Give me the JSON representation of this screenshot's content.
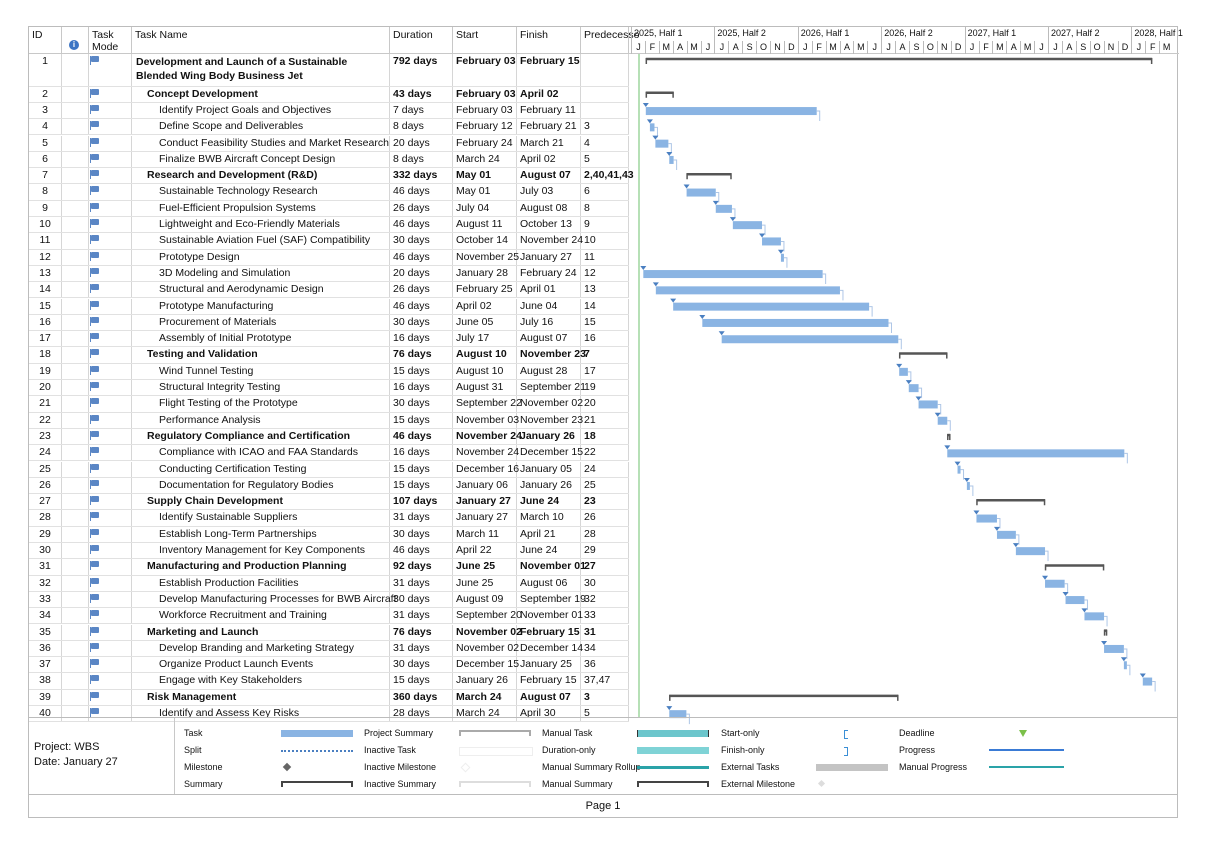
{
  "columns": {
    "id": "ID",
    "task_mode": "Task Mode",
    "task_name": "Task Name",
    "duration": "Duration",
    "start": "Start",
    "finish": "Finish",
    "predecessors": "Predecesso"
  },
  "timescale": {
    "major": [
      "2025, Half 1",
      "2025, Half 2",
      "2026, Half 1",
      "2026, Half 2",
      "2027, Half 1",
      "2027, Half 2",
      "2028, Half 1"
    ],
    "minor": [
      "J",
      "F",
      "M",
      "A",
      "M",
      "J",
      "J",
      "A",
      "S",
      "O",
      "N",
      "D",
      "J",
      "F",
      "M",
      "A",
      "M",
      "J",
      "J",
      "A",
      "S",
      "O",
      "N",
      "D",
      "J",
      "F",
      "M",
      "A",
      "M",
      "J",
      "J",
      "A",
      "S",
      "O",
      "N",
      "D",
      "J",
      "F",
      "M"
    ]
  },
  "tasks": [
    {
      "id": "1",
      "name": "Development and Launch of a Sustainable Blended Wing Body Business Jet",
      "duration": "792 days",
      "start": "February 03",
      "finish": "February 15",
      "pred": "",
      "summary": true,
      "level": 0
    },
    {
      "id": "2",
      "name": "Concept Development",
      "duration": "43 days",
      "start": "February 03",
      "finish": "April 02",
      "pred": "",
      "summary": true,
      "level": 1
    },
    {
      "id": "3",
      "name": "Identify Project Goals and Objectives",
      "duration": "7 days",
      "start": "February 03",
      "finish": "February 11",
      "pred": "",
      "summary": false,
      "level": 2
    },
    {
      "id": "4",
      "name": "Define Scope and Deliverables",
      "duration": "8 days",
      "start": "February 12",
      "finish": "February 21",
      "pred": "3",
      "summary": false,
      "level": 2
    },
    {
      "id": "5",
      "name": "Conduct Feasibility Studies and Market Research",
      "duration": "20 days",
      "start": "February 24",
      "finish": "March 21",
      "pred": "4",
      "summary": false,
      "level": 2
    },
    {
      "id": "6",
      "name": "Finalize BWB Aircraft Concept Design",
      "duration": "8 days",
      "start": "March 24",
      "finish": "April 02",
      "pred": "5",
      "summary": false,
      "level": 2
    },
    {
      "id": "7",
      "name": "Research and Development (R&D)",
      "duration": "332 days",
      "start": "May 01",
      "finish": "August 07",
      "pred": "2,40,41,43",
      "summary": true,
      "level": 1
    },
    {
      "id": "8",
      "name": "Sustainable Technology Research",
      "duration": "46 days",
      "start": "May 01",
      "finish": "July 03",
      "pred": "6",
      "summary": false,
      "level": 2
    },
    {
      "id": "9",
      "name": "Fuel-Efficient Propulsion Systems",
      "duration": "26 days",
      "start": "July 04",
      "finish": "August 08",
      "pred": "8",
      "summary": false,
      "level": 2
    },
    {
      "id": "10",
      "name": "Lightweight and Eco-Friendly Materials",
      "duration": "46 days",
      "start": "August 11",
      "finish": "October 13",
      "pred": "9",
      "summary": false,
      "level": 2
    },
    {
      "id": "11",
      "name": "Sustainable Aviation Fuel (SAF) Compatibility",
      "duration": "30 days",
      "start": "October 14",
      "finish": "November 24",
      "pred": "10",
      "summary": false,
      "level": 2
    },
    {
      "id": "12",
      "name": "Prototype Design",
      "duration": "46 days",
      "start": "November 25",
      "finish": "January 27",
      "pred": "11",
      "summary": false,
      "level": 2
    },
    {
      "id": "13",
      "name": "3D Modeling and Simulation",
      "duration": "20 days",
      "start": "January 28",
      "finish": "February 24",
      "pred": "12",
      "summary": false,
      "level": 2
    },
    {
      "id": "14",
      "name": "Structural and Aerodynamic Design",
      "duration": "26 days",
      "start": "February 25",
      "finish": "April 01",
      "pred": "13",
      "summary": false,
      "level": 2
    },
    {
      "id": "15",
      "name": "Prototype Manufacturing",
      "duration": "46 days",
      "start": "April 02",
      "finish": "June 04",
      "pred": "14",
      "summary": false,
      "level": 2
    },
    {
      "id": "16",
      "name": "Procurement of Materials",
      "duration": "30 days",
      "start": "June 05",
      "finish": "July 16",
      "pred": "15",
      "summary": false,
      "level": 2
    },
    {
      "id": "17",
      "name": "Assembly of Initial Prototype",
      "duration": "16 days",
      "start": "July 17",
      "finish": "August 07",
      "pred": "16",
      "summary": false,
      "level": 2
    },
    {
      "id": "18",
      "name": "Testing and Validation",
      "duration": "76 days",
      "start": "August 10",
      "finish": "November 23",
      "pred": "7",
      "summary": true,
      "level": 1
    },
    {
      "id": "19",
      "name": "Wind Tunnel Testing",
      "duration": "15 days",
      "start": "August 10",
      "finish": "August 28",
      "pred": "17",
      "summary": false,
      "level": 2
    },
    {
      "id": "20",
      "name": "Structural Integrity Testing",
      "duration": "16 days",
      "start": "August 31",
      "finish": "September 21",
      "pred": "19",
      "summary": false,
      "level": 2
    },
    {
      "id": "21",
      "name": "Flight Testing of the Prototype",
      "duration": "30 days",
      "start": "September 22",
      "finish": "November 02",
      "pred": "20",
      "summary": false,
      "level": 2
    },
    {
      "id": "22",
      "name": "Performance Analysis",
      "duration": "15 days",
      "start": "November 03",
      "finish": "November 23",
      "pred": "21",
      "summary": false,
      "level": 2
    },
    {
      "id": "23",
      "name": "Regulatory Compliance and Certification",
      "duration": "46 days",
      "start": "November 24",
      "finish": "January 26",
      "pred": "18",
      "summary": true,
      "level": 1
    },
    {
      "id": "24",
      "name": "Compliance with ICAO and FAA Standards",
      "duration": "16 days",
      "start": "November 24",
      "finish": "December 15",
      "pred": "22",
      "summary": false,
      "level": 2
    },
    {
      "id": "25",
      "name": "Conducting Certification Testing",
      "duration": "15 days",
      "start": "December 16",
      "finish": "January 05",
      "pred": "24",
      "summary": false,
      "level": 2
    },
    {
      "id": "26",
      "name": "Documentation for Regulatory Bodies",
      "duration": "15 days",
      "start": "January 06",
      "finish": "January 26",
      "pred": "25",
      "summary": false,
      "level": 2
    },
    {
      "id": "27",
      "name": "Supply Chain Development",
      "duration": "107 days",
      "start": "January 27",
      "finish": "June 24",
      "pred": "23",
      "summary": true,
      "level": 1
    },
    {
      "id": "28",
      "name": "Identify Sustainable Suppliers",
      "duration": "31 days",
      "start": "January 27",
      "finish": "March 10",
      "pred": "26",
      "summary": false,
      "level": 2
    },
    {
      "id": "29",
      "name": "Establish Long-Term Partnerships",
      "duration": "30 days",
      "start": "March 11",
      "finish": "April 21",
      "pred": "28",
      "summary": false,
      "level": 2
    },
    {
      "id": "30",
      "name": "Inventory Management for Key Components",
      "duration": "46 days",
      "start": "April 22",
      "finish": "June 24",
      "pred": "29",
      "summary": false,
      "level": 2
    },
    {
      "id": "31",
      "name": "Manufacturing and Production Planning",
      "duration": "92 days",
      "start": "June 25",
      "finish": "November 01",
      "pred": "27",
      "summary": true,
      "level": 1
    },
    {
      "id": "32",
      "name": "Establish Production Facilities",
      "duration": "31 days",
      "start": "June 25",
      "finish": "August 06",
      "pred": "30",
      "summary": false,
      "level": 2
    },
    {
      "id": "33",
      "name": "Develop Manufacturing Processes for BWB Aircraft",
      "duration": "30 days",
      "start": "August 09",
      "finish": "September 19",
      "pred": "32",
      "summary": false,
      "level": 2
    },
    {
      "id": "34",
      "name": "Workforce Recruitment and Training",
      "duration": "31 days",
      "start": "September 20",
      "finish": "November 01",
      "pred": "33",
      "summary": false,
      "level": 2
    },
    {
      "id": "35",
      "name": "Marketing and Launch",
      "duration": "76 days",
      "start": "November 02",
      "finish": "February 15",
      "pred": "31",
      "summary": true,
      "level": 1
    },
    {
      "id": "36",
      "name": "Develop Branding and Marketing Strategy",
      "duration": "31 days",
      "start": "November 02",
      "finish": "December 14",
      "pred": "34",
      "summary": false,
      "level": 2
    },
    {
      "id": "37",
      "name": "Organize Product Launch Events",
      "duration": "30 days",
      "start": "December 15",
      "finish": "January 25",
      "pred": "36",
      "summary": false,
      "level": 2
    },
    {
      "id": "38",
      "name": "Engage with Key Stakeholders",
      "duration": "15 days",
      "start": "January 26",
      "finish": "February 15",
      "pred": "37,47",
      "summary": false,
      "level": 2
    },
    {
      "id": "39",
      "name": "Risk Management",
      "duration": "360 days",
      "start": "March 24",
      "finish": "August 07",
      "pred": "3",
      "summary": true,
      "level": 1
    },
    {
      "id": "40",
      "name": "Identify and Assess Key Risks",
      "duration": "28 days",
      "start": "March 24",
      "finish": "April 30",
      "pred": "5",
      "summary": false,
      "level": 2
    }
  ],
  "legend": {
    "project": "Project: WBS",
    "date": "Date: January 27",
    "items": [
      "Task",
      "Split",
      "Milestone",
      "Summary",
      "Project Summary",
      "Inactive Task",
      "Inactive Milestone",
      "Inactive Summary",
      "Manual Task",
      "Duration-only",
      "Manual Summary Rollup",
      "Manual Summary",
      "Start-only",
      "Finish-only",
      "External Tasks",
      "External Milestone",
      "Deadline",
      "Progress",
      "Manual Progress"
    ]
  },
  "footer": "Page 1",
  "colors": {
    "task_bar": "#8ab4e3",
    "summary_bar": "#555555",
    "accent": "#4a7fc1",
    "today_line": "#6cc06c"
  }
}
